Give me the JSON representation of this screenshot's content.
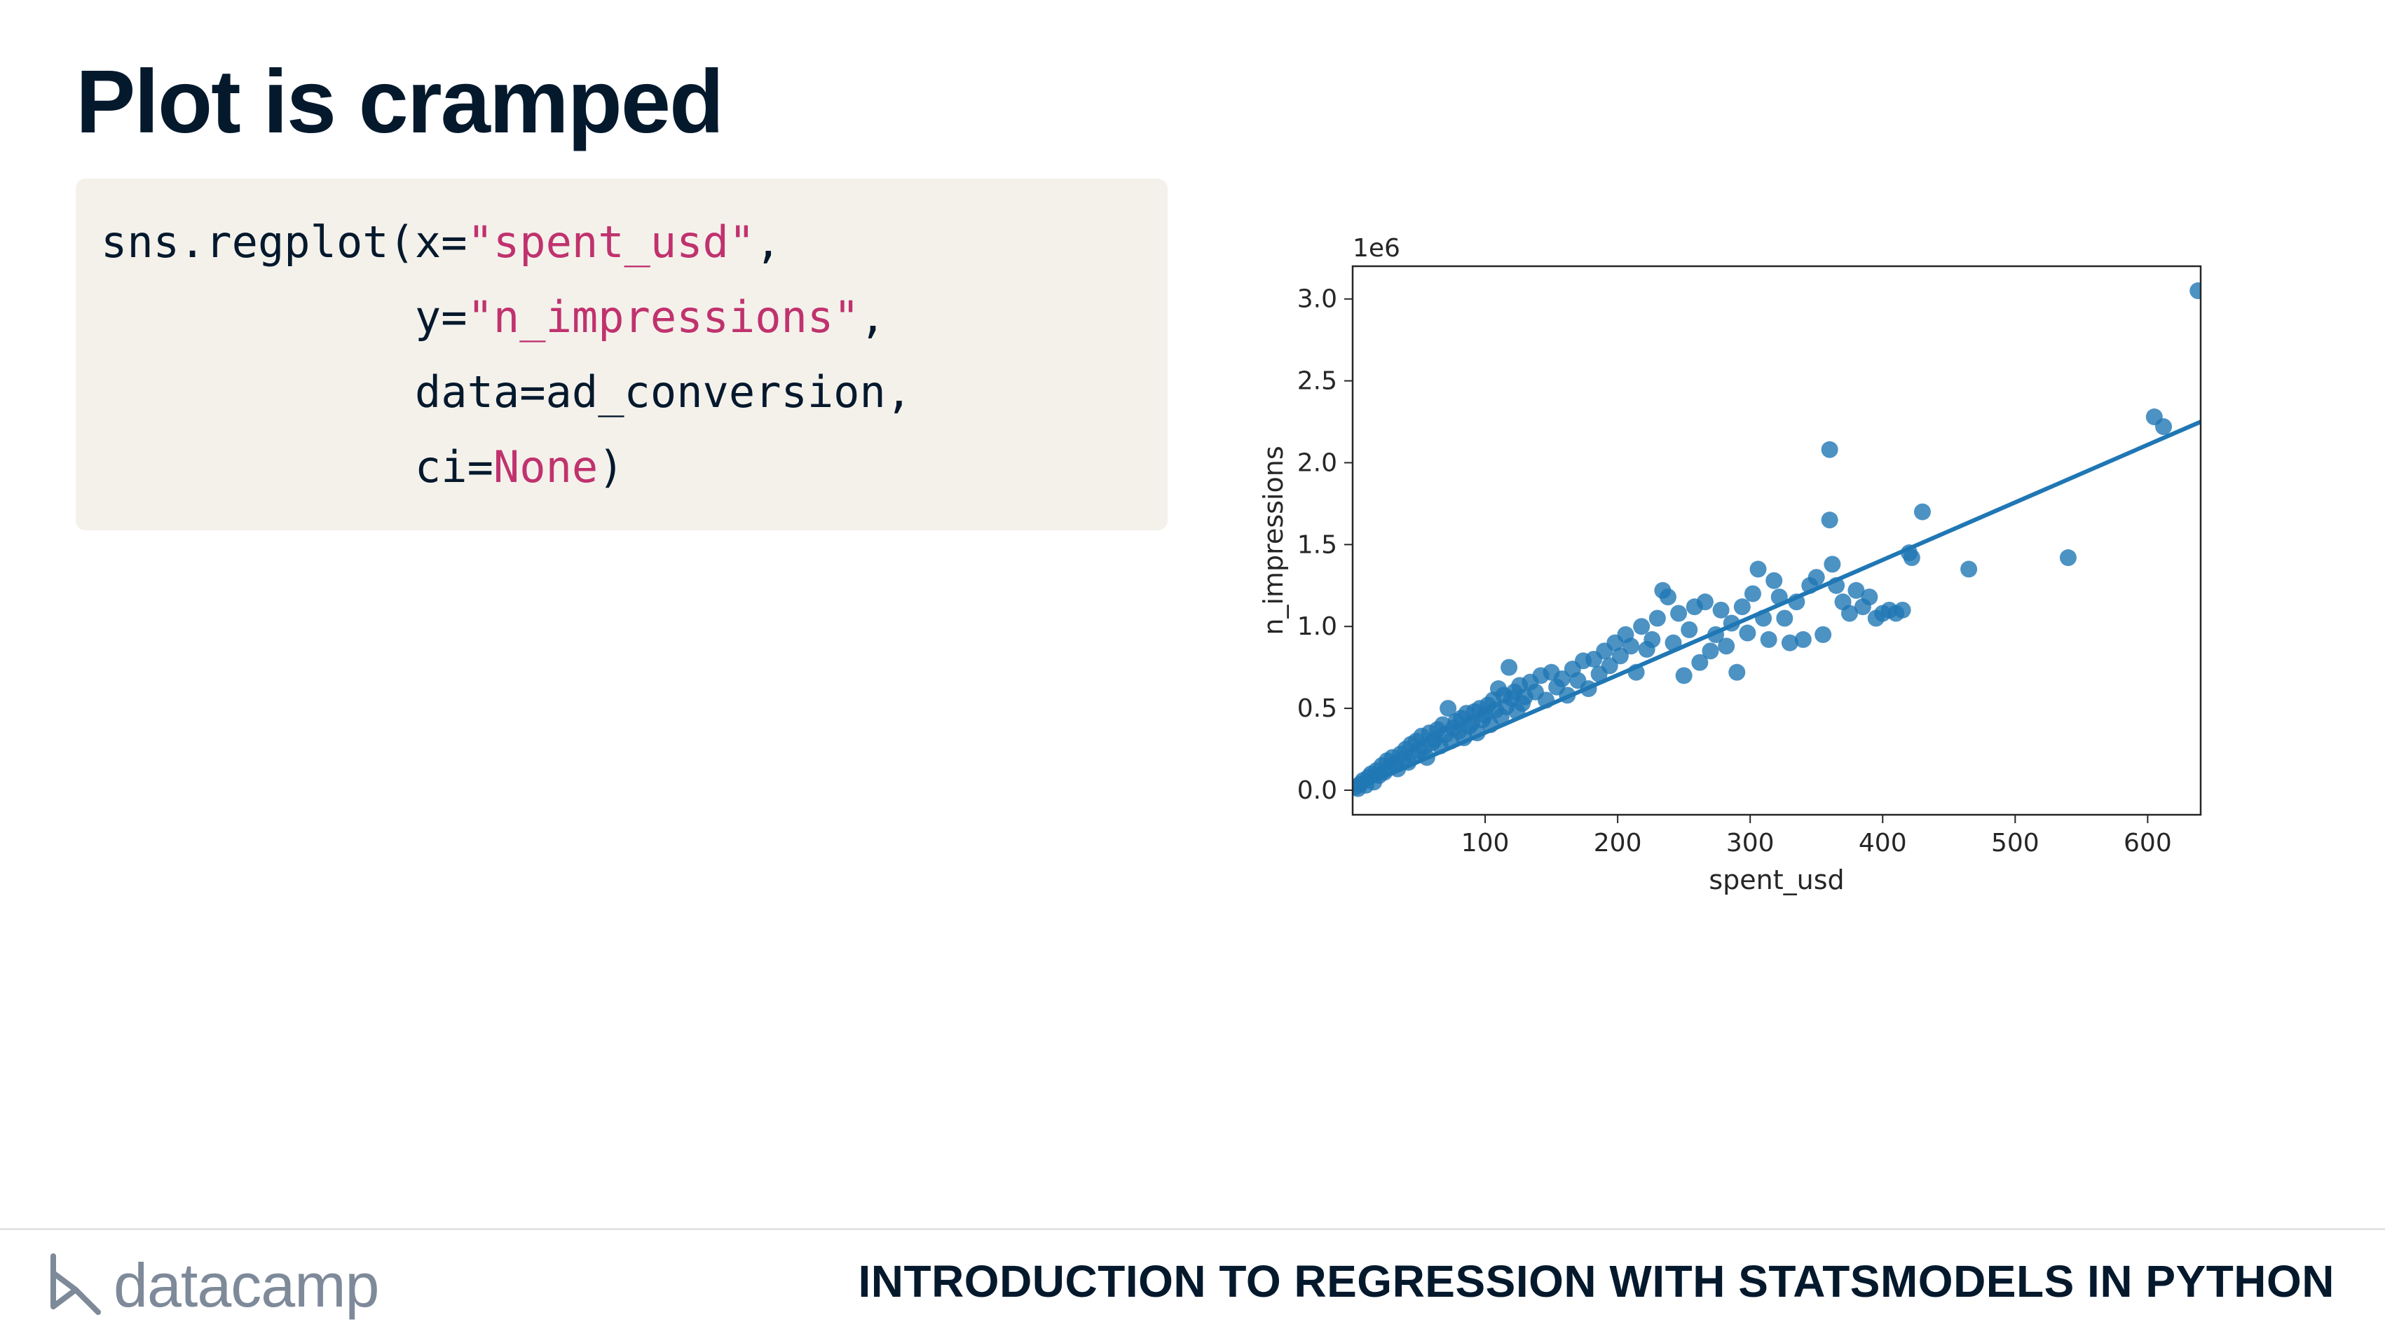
{
  "slide": {
    "title": "Plot is cramped",
    "code": {
      "line1_a": "sns.regplot(x=",
      "line1_str": "\"spent_usd\"",
      "line1_b": ",",
      "line2_a": "            y=",
      "line2_str": "\"n_impressions\"",
      "line2_b": ",",
      "line3": "            data=ad_conversion,",
      "line4_a": "            ci=",
      "line4_kw": "None",
      "line4_b": ")"
    },
    "footer": {
      "logo_text": "datacamp",
      "course_title": "INTRODUCTION TO REGRESSION WITH STATSMODELS IN PYTHON"
    }
  },
  "colors": {
    "accent": "#1f77b4",
    "code_string": "#c0326e",
    "title": "#05192d",
    "code_bg": "#f4f1eb"
  },
  "chart_data": {
    "type": "scatter",
    "xlabel": "spent_usd",
    "ylabel": "n_impressions",
    "y_offset_label": "1e6",
    "xlim": [
      0,
      640
    ],
    "ylim": [
      -0.15,
      3.2
    ],
    "xticks": [
      100,
      200,
      300,
      400,
      500,
      600
    ],
    "yticks": [
      0.0,
      0.5,
      1.0,
      1.5,
      2.0,
      2.5,
      3.0
    ],
    "xtick_labels": [
      "100",
      "200",
      "300",
      "400",
      "500",
      "600"
    ],
    "ytick_labels": [
      "0.0",
      "0.5",
      "1.0",
      "1.5",
      "2.0",
      "2.5",
      "3.0"
    ],
    "grid": false,
    "regression_line": {
      "x": [
        0,
        640
      ],
      "y": [
        0.0,
        2.25
      ]
    },
    "points": [
      [
        2,
        0.02
      ],
      [
        4,
        0.01
      ],
      [
        6,
        0.04
      ],
      [
        8,
        0.06
      ],
      [
        10,
        0.03
      ],
      [
        12,
        0.08
      ],
      [
        14,
        0.1
      ],
      [
        16,
        0.05
      ],
      [
        18,
        0.12
      ],
      [
        20,
        0.09
      ],
      [
        22,
        0.15
      ],
      [
        24,
        0.11
      ],
      [
        26,
        0.18
      ],
      [
        28,
        0.14
      ],
      [
        30,
        0.2
      ],
      [
        32,
        0.16
      ],
      [
        34,
        0.13
      ],
      [
        36,
        0.22
      ],
      [
        38,
        0.19
      ],
      [
        40,
        0.25
      ],
      [
        42,
        0.17
      ],
      [
        44,
        0.28
      ],
      [
        46,
        0.21
      ],
      [
        48,
        0.3
      ],
      [
        50,
        0.24
      ],
      [
        52,
        0.33
      ],
      [
        54,
        0.26
      ],
      [
        56,
        0.2
      ],
      [
        58,
        0.35
      ],
      [
        60,
        0.29
      ],
      [
        62,
        0.31
      ],
      [
        64,
        0.37
      ],
      [
        66,
        0.27
      ],
      [
        68,
        0.4
      ],
      [
        70,
        0.34
      ],
      [
        72,
        0.5
      ],
      [
        74,
        0.3
      ],
      [
        76,
        0.38
      ],
      [
        78,
        0.42
      ],
      [
        80,
        0.36
      ],
      [
        82,
        0.44
      ],
      [
        84,
        0.32
      ],
      [
        86,
        0.47
      ],
      [
        88,
        0.39
      ],
      [
        90,
        0.41
      ],
      [
        92,
        0.48
      ],
      [
        94,
        0.35
      ],
      [
        96,
        0.5
      ],
      [
        98,
        0.43
      ],
      [
        100,
        0.46
      ],
      [
        102,
        0.52
      ],
      [
        104,
        0.4
      ],
      [
        106,
        0.55
      ],
      [
        108,
        0.49
      ],
      [
        110,
        0.62
      ],
      [
        112,
        0.45
      ],
      [
        114,
        0.58
      ],
      [
        116,
        0.51
      ],
      [
        118,
        0.75
      ],
      [
        120,
        0.56
      ],
      [
        122,
        0.6
      ],
      [
        124,
        0.48
      ],
      [
        126,
        0.64
      ],
      [
        128,
        0.53
      ],
      [
        130,
        0.57
      ],
      [
        134,
        0.66
      ],
      [
        138,
        0.6
      ],
      [
        142,
        0.7
      ],
      [
        146,
        0.55
      ],
      [
        150,
        0.72
      ],
      [
        154,
        0.63
      ],
      [
        158,
        0.68
      ],
      [
        162,
        0.58
      ],
      [
        166,
        0.74
      ],
      [
        170,
        0.67
      ],
      [
        174,
        0.79
      ],
      [
        178,
        0.62
      ],
      [
        182,
        0.8
      ],
      [
        186,
        0.71
      ],
      [
        190,
        0.85
      ],
      [
        194,
        0.76
      ],
      [
        198,
        0.9
      ],
      [
        202,
        0.82
      ],
      [
        206,
        0.95
      ],
      [
        210,
        0.88
      ],
      [
        214,
        0.72
      ],
      [
        218,
        1.0
      ],
      [
        222,
        0.86
      ],
      [
        226,
        0.92
      ],
      [
        230,
        1.05
      ],
      [
        234,
        1.22
      ],
      [
        238,
        1.18
      ],
      [
        242,
        0.9
      ],
      [
        246,
        1.08
      ],
      [
        250,
        0.7
      ],
      [
        254,
        0.98
      ],
      [
        258,
        1.12
      ],
      [
        262,
        0.78
      ],
      [
        266,
        1.15
      ],
      [
        270,
        0.85
      ],
      [
        274,
        0.95
      ],
      [
        278,
        1.1
      ],
      [
        282,
        0.88
      ],
      [
        286,
        1.02
      ],
      [
        290,
        0.72
      ],
      [
        294,
        1.12
      ],
      [
        298,
        0.96
      ],
      [
        302,
        1.2
      ],
      [
        306,
        1.35
      ],
      [
        310,
        1.05
      ],
      [
        314,
        0.92
      ],
      [
        318,
        1.28
      ],
      [
        322,
        1.18
      ],
      [
        326,
        1.05
      ],
      [
        330,
        0.9
      ],
      [
        335,
        1.15
      ],
      [
        340,
        0.92
      ],
      [
        345,
        1.25
      ],
      [
        350,
        1.3
      ],
      [
        355,
        0.95
      ],
      [
        360,
        2.08
      ],
      [
        360,
        1.65
      ],
      [
        362,
        1.38
      ],
      [
        365,
        1.25
      ],
      [
        370,
        1.15
      ],
      [
        375,
        1.08
      ],
      [
        380,
        1.22
      ],
      [
        385,
        1.12
      ],
      [
        390,
        1.18
      ],
      [
        395,
        1.05
      ],
      [
        400,
        1.08
      ],
      [
        405,
        1.1
      ],
      [
        410,
        1.08
      ],
      [
        415,
        1.1
      ],
      [
        420,
        1.45
      ],
      [
        422,
        1.42
      ],
      [
        430,
        1.7
      ],
      [
        465,
        1.35
      ],
      [
        540,
        1.42
      ],
      [
        605,
        2.28
      ],
      [
        612,
        2.22
      ],
      [
        638,
        3.05
      ]
    ]
  }
}
